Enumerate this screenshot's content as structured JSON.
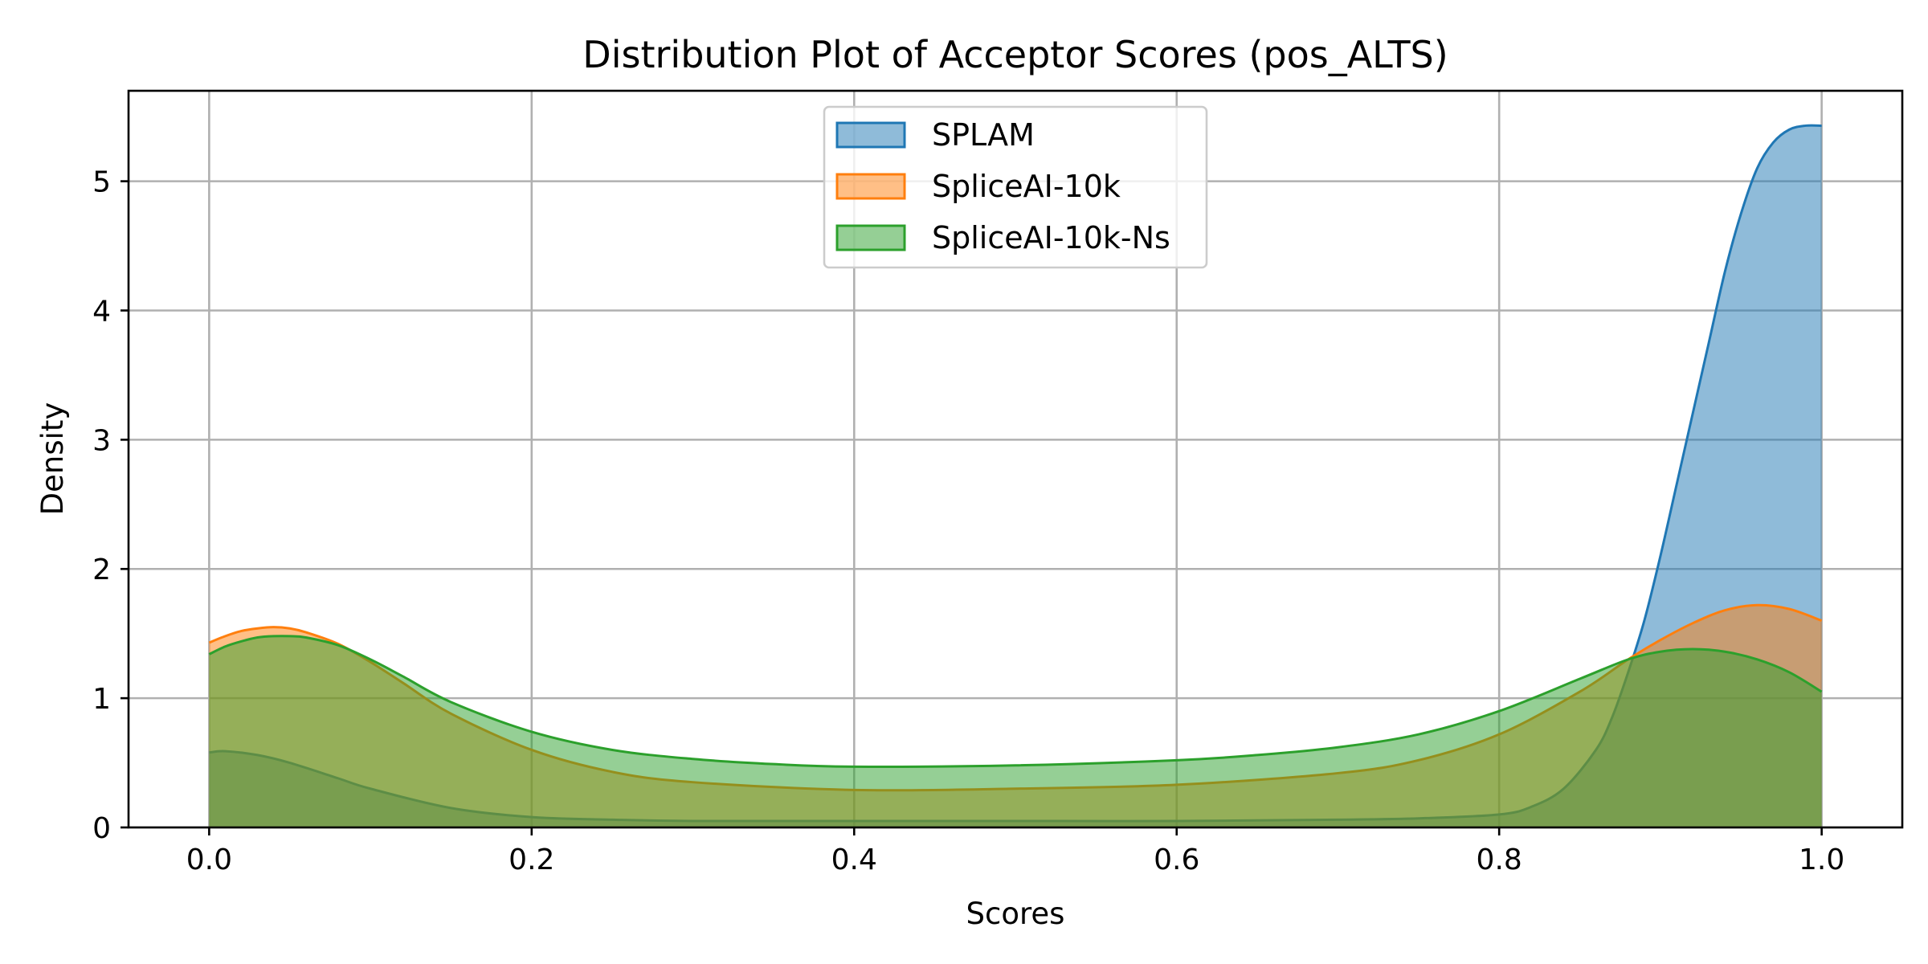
{
  "chart_data": {
    "type": "area",
    "title": "Distribution Plot of Acceptor Scores (pos_ALTS)",
    "xlabel": "Scores",
    "ylabel": "Density",
    "xlim": [
      -0.05,
      1.05
    ],
    "ylim": [
      0,
      5.7
    ],
    "x_ticks": [
      0.0,
      0.2,
      0.4,
      0.6,
      0.8,
      1.0
    ],
    "x_tick_labels": [
      "0.0",
      "0.2",
      "0.4",
      "0.6",
      "0.8",
      "1.0"
    ],
    "y_ticks": [
      0,
      1,
      2,
      3,
      4,
      5
    ],
    "y_tick_labels": [
      "0",
      "1",
      "2",
      "3",
      "4",
      "5"
    ],
    "grid": true,
    "legend_position": "upper center",
    "fill_alpha": 0.5,
    "series": [
      {
        "name": "SPLAM",
        "color": "#1f77b4",
        "x": [
          0.0,
          0.01,
          0.03,
          0.05,
          0.08,
          0.1,
          0.15,
          0.2,
          0.25,
          0.3,
          0.4,
          0.5,
          0.6,
          0.7,
          0.75,
          0.8,
          0.82,
          0.84,
          0.86,
          0.87,
          0.88,
          0.89,
          0.9,
          0.91,
          0.92,
          0.93,
          0.94,
          0.95,
          0.96,
          0.97,
          0.98,
          0.99,
          1.0
        ],
        "y": [
          0.58,
          0.59,
          0.56,
          0.5,
          0.38,
          0.3,
          0.15,
          0.08,
          0.06,
          0.05,
          0.05,
          0.05,
          0.05,
          0.06,
          0.07,
          0.1,
          0.16,
          0.3,
          0.6,
          0.85,
          1.2,
          1.6,
          2.1,
          2.65,
          3.2,
          3.75,
          4.3,
          4.75,
          5.1,
          5.3,
          5.4,
          5.43,
          5.43
        ]
      },
      {
        "name": "SpliceAI-10k",
        "color": "#ff7f0e",
        "x": [
          0.0,
          0.01,
          0.02,
          0.03,
          0.04,
          0.05,
          0.06,
          0.08,
          0.1,
          0.12,
          0.15,
          0.2,
          0.25,
          0.3,
          0.4,
          0.5,
          0.6,
          0.7,
          0.75,
          0.8,
          0.85,
          0.88,
          0.9,
          0.92,
          0.94,
          0.96,
          0.98,
          1.0
        ],
        "y": [
          1.43,
          1.48,
          1.52,
          1.54,
          1.55,
          1.54,
          1.51,
          1.42,
          1.28,
          1.12,
          0.88,
          0.6,
          0.43,
          0.35,
          0.29,
          0.3,
          0.33,
          0.42,
          0.52,
          0.72,
          1.05,
          1.3,
          1.45,
          1.58,
          1.68,
          1.72,
          1.69,
          1.6
        ]
      },
      {
        "name": "SpliceAI-10k-Ns",
        "color": "#2ca02c",
        "x": [
          0.0,
          0.01,
          0.02,
          0.03,
          0.04,
          0.05,
          0.06,
          0.08,
          0.1,
          0.12,
          0.15,
          0.2,
          0.25,
          0.3,
          0.35,
          0.4,
          0.5,
          0.6,
          0.65,
          0.7,
          0.75,
          0.8,
          0.85,
          0.88,
          0.9,
          0.92,
          0.94,
          0.96,
          0.98,
          1.0
        ],
        "y": [
          1.34,
          1.4,
          1.44,
          1.47,
          1.48,
          1.48,
          1.47,
          1.41,
          1.3,
          1.17,
          0.97,
          0.74,
          0.6,
          0.53,
          0.49,
          0.47,
          0.48,
          0.52,
          0.56,
          0.62,
          0.72,
          0.9,
          1.15,
          1.3,
          1.36,
          1.38,
          1.36,
          1.3,
          1.2,
          1.05
        ]
      }
    ]
  }
}
